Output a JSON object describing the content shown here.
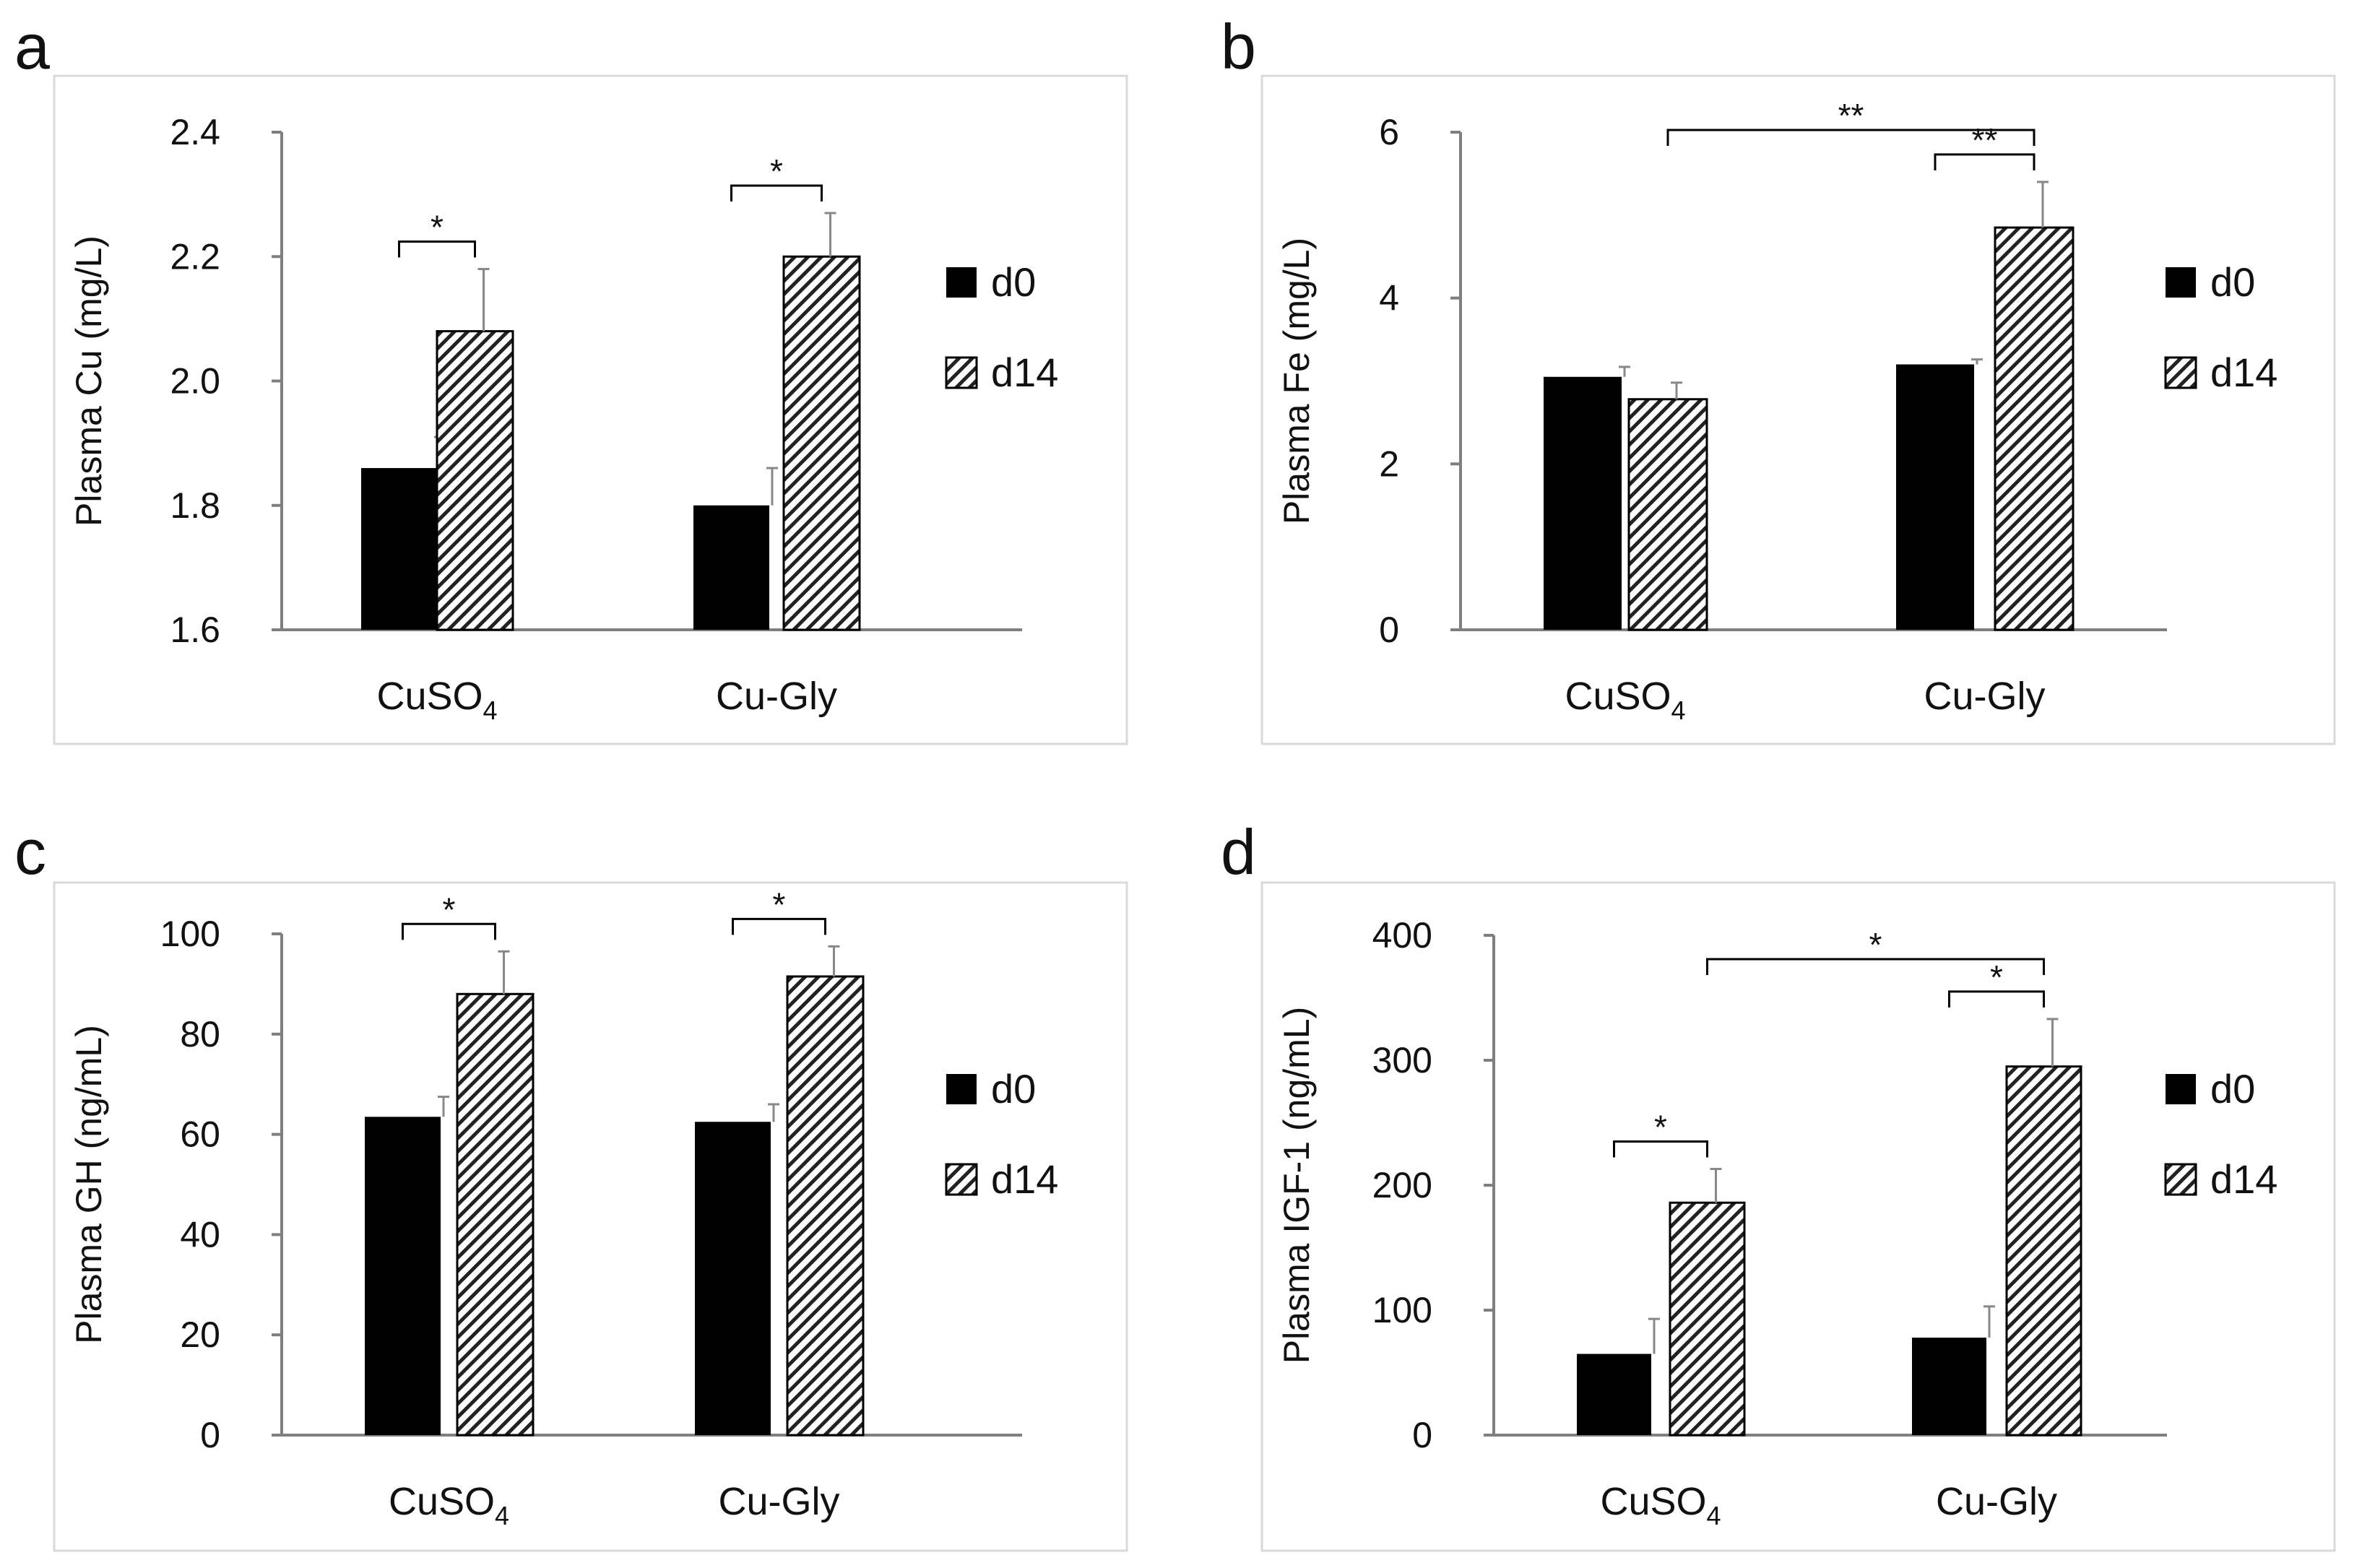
{
  "chart_data": [
    {
      "panel_letter": "a",
      "type": "bar",
      "categories": [
        "CuSO",
        "Cu-Gly"
      ],
      "category_subscripts": [
        "4",
        ""
      ],
      "series": [
        {
          "name": "d0",
          "values": [
            1.86,
            1.8
          ],
          "errors": [
            0.05,
            0.06
          ]
        },
        {
          "name": "d14",
          "values": [
            2.08,
            2.2
          ],
          "errors": [
            0.1,
            0.07
          ]
        }
      ],
      "ylabel": "Plasma Cu (mg/L)",
      "ylim": [
        1.6,
        2.4
      ],
      "yticks": [
        1.6,
        1.8,
        2.0,
        2.2,
        2.4
      ],
      "ytick_labels": [
        "1.6",
        "1.8",
        "2.0",
        "2.2",
        "2.4"
      ],
      "legend": [
        "d0",
        "d14"
      ],
      "legend_position": "right",
      "grid": false,
      "significance": [
        {
          "label": "*",
          "from": [
            0,
            0
          ],
          "to": [
            0,
            1
          ]
        },
        {
          "label": "*",
          "from": [
            1,
            0
          ],
          "to": [
            1,
            1
          ]
        }
      ]
    },
    {
      "panel_letter": "b",
      "type": "bar",
      "categories": [
        "CuSO",
        "Cu-Gly"
      ],
      "category_subscripts": [
        "4",
        ""
      ],
      "series": [
        {
          "name": "d0",
          "values": [
            3.05,
            3.2
          ],
          "errors": [
            0.12,
            0.06
          ]
        },
        {
          "name": "d14",
          "values": [
            2.78,
            4.85
          ],
          "errors": [
            0.2,
            0.55
          ]
        }
      ],
      "ylabel": "Plasma Fe (mg/L)",
      "ylim": [
        0,
        6
      ],
      "yticks": [
        0,
        2,
        4,
        6
      ],
      "ytick_labels": [
        "0",
        "2",
        "4",
        "6"
      ],
      "legend": [
        "d0",
        "d14"
      ],
      "legend_position": "right",
      "grid": false,
      "significance": [
        {
          "label": "**",
          "from": [
            0,
            1
          ],
          "to": [
            1,
            1
          ]
        },
        {
          "label": "**",
          "from": [
            1,
            0
          ],
          "to": [
            1,
            1
          ]
        }
      ]
    },
    {
      "panel_letter": "c",
      "type": "bar",
      "categories": [
        "CuSO",
        "Cu-Gly"
      ],
      "category_subscripts": [
        "4",
        ""
      ],
      "series": [
        {
          "name": "d0",
          "values": [
            63.5,
            62.5
          ],
          "errors": [
            4,
            3.5
          ]
        },
        {
          "name": "d14",
          "values": [
            88,
            91.5
          ],
          "errors": [
            8.5,
            6
          ]
        }
      ],
      "ylabel": "Plasma GH (ng/mL)",
      "ylim": [
        0,
        100
      ],
      "yticks": [
        0,
        20,
        40,
        60,
        80,
        100
      ],
      "ytick_labels": [
        "0",
        "20",
        "40",
        "60",
        "80",
        "100"
      ],
      "legend": [
        "d0",
        "d14"
      ],
      "legend_position": "right",
      "grid": false,
      "significance": [
        {
          "label": "*",
          "from": [
            0,
            0
          ],
          "to": [
            0,
            1
          ]
        },
        {
          "label": "*",
          "from": [
            1,
            0
          ],
          "to": [
            1,
            1
          ]
        }
      ]
    },
    {
      "panel_letter": "d",
      "type": "bar",
      "categories": [
        "CuSO",
        "Cu-Gly"
      ],
      "category_subscripts": [
        "4",
        ""
      ],
      "series": [
        {
          "name": "d0",
          "values": [
            65,
            78
          ],
          "errors": [
            28,
            25
          ]
        },
        {
          "name": "d14",
          "values": [
            186,
            295
          ],
          "errors": [
            27,
            38
          ]
        }
      ],
      "ylabel": "Plasma IGF-1 (ng/mL)",
      "ylim": [
        0,
        400
      ],
      "yticks": [
        0,
        100,
        200,
        300,
        400
      ],
      "ytick_labels": [
        "0",
        "100",
        "200",
        "300",
        "400"
      ],
      "legend": [
        "d0",
        "d14"
      ],
      "legend_position": "right",
      "grid": false,
      "significance": [
        {
          "label": "*",
          "from": [
            0,
            0
          ],
          "to": [
            0,
            1
          ]
        },
        {
          "label": "*",
          "from": [
            0,
            1
          ],
          "to": [
            1,
            1
          ]
        },
        {
          "label": "*",
          "from": [
            1,
            0
          ],
          "to": [
            1,
            1
          ]
        }
      ]
    }
  ],
  "colors": {
    "bar_d0": "#000000",
    "hatch": "#222222",
    "frame": "#d9d9d9",
    "axis": "#7f7f7f"
  }
}
